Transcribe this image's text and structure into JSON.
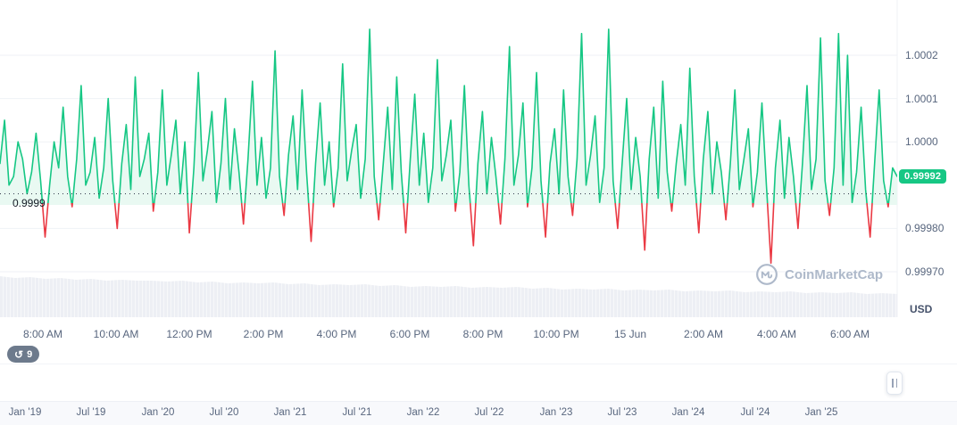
{
  "colors": {
    "up": "#16c784",
    "down": "#ea3943",
    "fill": "#e9f9f2",
    "grid": "#eff2f6",
    "reference": "#30394a",
    "volume": "#edeff4",
    "volume_stripe": "#f7f8fa",
    "axis_text": "#58667e"
  },
  "watermark": {
    "text": "CoinMarketCap"
  },
  "history": {
    "count": "9"
  },
  "timeline": {
    "labels": [
      "Jan '19",
      "Jul '19",
      "Jan '20",
      "Jul '20",
      "Jan '21",
      "Jul '21",
      "Jan '22",
      "Jul '22",
      "Jan '23",
      "Jul '23",
      "Jan '24",
      "Jul '24",
      "Jan '25"
    ]
  },
  "chart_data": {
    "type": "line",
    "title": "",
    "xlabel": "",
    "ylabel": "USD",
    "y_range": [
      0.99965,
      1.00032
    ],
    "grid": true,
    "legend_position": "none",
    "y_tick_labels": [
      "1.0002",
      "1.0001",
      "1.0000",
      "0.99980",
      "0.99970"
    ],
    "y_tick_values": [
      1.0002,
      1.0001,
      1.0,
      0.9998,
      0.9997
    ],
    "x_tick_labels": [
      "8:00 AM",
      "10:00 AM",
      "12:00 PM",
      "2:00 PM",
      "4:00 PM",
      "6:00 PM",
      "8:00 PM",
      "10:00 PM",
      "15 Jun",
      "2:00 AM",
      "4:00 AM",
      "6:00 AM"
    ],
    "current_value": 0.99992,
    "current_label": "0.99992",
    "reference_line": 0.99988,
    "reference_label": "0.9999",
    "series": [
      {
        "name": "price",
        "values": [
          0.99995,
          1.00005,
          0.9999,
          0.99992,
          1.0,
          0.99996,
          0.99988,
          0.99993,
          1.00002,
          0.99991,
          0.99978,
          0.9999,
          1.0,
          0.99994,
          1.00008,
          0.99992,
          0.99985,
          0.99996,
          1.00013,
          0.9999,
          0.99993,
          1.00001,
          0.99987,
          0.99994,
          1.0001,
          0.99991,
          0.9998,
          0.99995,
          1.00004,
          0.99989,
          1.00015,
          0.99992,
          0.99996,
          1.00002,
          0.99984,
          0.99993,
          1.00012,
          0.9999,
          0.99997,
          1.00005,
          0.99988,
          1.0,
          0.99979,
          0.99994,
          1.00016,
          0.99991,
          0.99998,
          1.00007,
          0.99986,
          0.99995,
          1.0001,
          0.99989,
          1.00003,
          0.99993,
          0.99981,
          0.99996,
          1.00014,
          0.9999,
          1.00001,
          0.99987,
          0.99994,
          1.00021,
          0.99992,
          0.99983,
          0.99997,
          1.00006,
          0.99989,
          1.00012,
          0.99993,
          0.99977,
          0.99995,
          1.00009,
          0.9999,
          1.0,
          0.99985,
          0.99994,
          1.00018,
          0.99991,
          0.99998,
          1.00004,
          0.99987,
          0.99996,
          1.00026,
          0.99992,
          0.99982,
          0.99995,
          1.00008,
          0.99989,
          1.00015,
          0.99993,
          0.99979,
          0.99996,
          1.00011,
          0.9999,
          1.00002,
          0.99986,
          0.99994,
          1.00019,
          0.99991,
          0.99997,
          1.00005,
          0.99984,
          0.99993,
          1.00013,
          0.9999,
          0.99976,
          0.99995,
          1.00007,
          0.99988,
          1.00001,
          0.99992,
          0.99981,
          0.99996,
          1.00022,
          0.9999,
          0.99997,
          1.00009,
          0.99985,
          0.99994,
          1.00016,
          0.99991,
          0.99978,
          0.99995,
          1.00003,
          0.99988,
          1.00012,
          0.99992,
          0.99983,
          0.99996,
          1.00025,
          0.9999,
          0.99997,
          1.00006,
          0.99986,
          0.99994,
          1.00026,
          0.99991,
          0.9998,
          0.99995,
          1.0001,
          0.99989,
          1.00001,
          0.99992,
          0.99975,
          0.99996,
          1.00008,
          0.99987,
          1.00014,
          0.99993,
          0.99984,
          0.99995,
          1.00004,
          0.9999,
          1.00017,
          0.99992,
          0.99979,
          0.99996,
          1.00007,
          0.99988,
          1.0,
          0.99993,
          0.99982,
          0.99995,
          1.00012,
          0.99989,
          0.99996,
          1.00003,
          0.99985,
          0.99993,
          1.00009,
          0.9999,
          0.99972,
          0.99994,
          1.00005,
          0.99987,
          1.00001,
          0.99992,
          0.9998,
          0.99995,
          1.00013,
          0.99989,
          0.99996,
          1.00024,
          0.99991,
          0.99983,
          0.99994,
          1.00025,
          0.9999,
          1.0002,
          0.99986,
          0.99993,
          1.00008,
          0.99989,
          0.99978,
          0.99995,
          1.00012,
          0.99991,
          0.99985,
          0.99994,
          0.99992
        ]
      }
    ],
    "volume_relative": [
      46,
      44,
      45,
      43,
      44,
      42,
      43,
      41,
      42,
      41,
      41,
      40,
      41,
      39,
      40,
      38,
      39,
      38,
      39,
      37,
      38,
      36,
      37,
      36,
      37,
      35,
      36,
      34,
      35,
      34,
      35,
      33,
      34,
      33,
      34,
      32,
      33,
      31,
      32,
      31,
      32,
      30,
      31,
      30,
      31,
      29,
      30,
      29,
      30,
      28,
      29,
      28,
      29,
      27,
      28,
      27,
      28,
      26,
      27,
      26
    ]
  }
}
